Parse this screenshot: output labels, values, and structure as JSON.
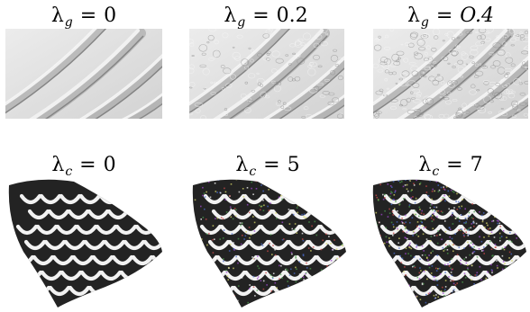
{
  "top_row": {
    "symbol": "λ",
    "subscript": "g",
    "panels": [
      {
        "value": "0",
        "value_italic": false,
        "roughness": 0.0
      },
      {
        "value": "0.2",
        "value_italic": false,
        "roughness": 0.5
      },
      {
        "value": "O.4",
        "value_italic": true,
        "roughness": 1.0
      }
    ]
  },
  "bottom_row": {
    "symbol": "λ",
    "subscript": "c",
    "panels": [
      {
        "value": "0",
        "noise": 0.0
      },
      {
        "value": "5",
        "noise": 0.45
      },
      {
        "value": "7",
        "noise": 1.0
      }
    ]
  },
  "colors": {
    "relief_light": "#e6e6e6",
    "relief_dark": "#8a8a8a",
    "fan_dark": "#222222",
    "scale_white": "#f2f2f2"
  }
}
